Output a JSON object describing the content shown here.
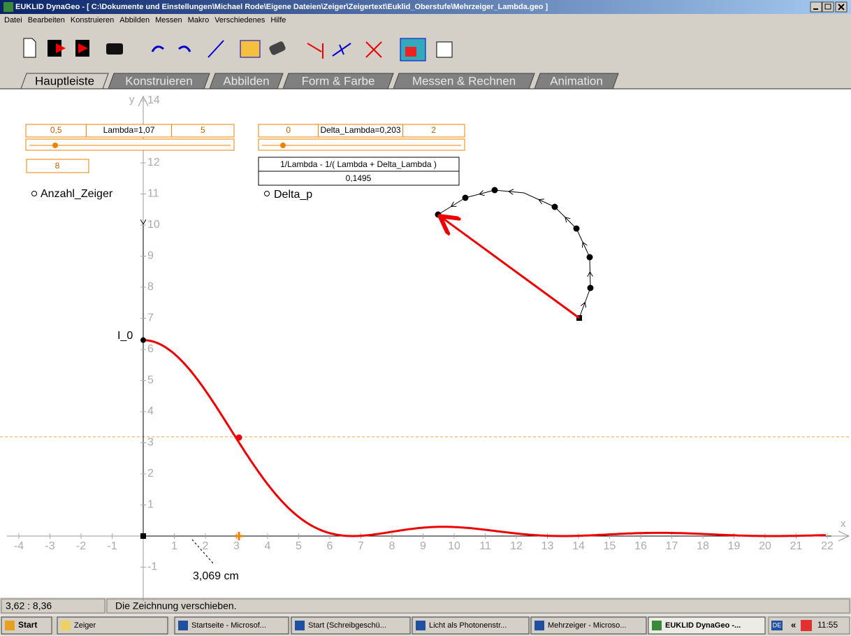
{
  "window": {
    "title": "EUKLID DynaGeo - [ C:\\Dokumente und Einstellungen\\Michael Rode\\Eigene Dateien\\Zeiger\\Zeigertext\\Euklid_Oberstufe\\Mehrzeiger_Lambda.geo ]"
  },
  "menu": [
    "Datei",
    "Bearbeiten",
    "Konstruieren",
    "Abbilden",
    "Messen",
    "Makro",
    "Verschiedenes",
    "Hilfe"
  ],
  "tabs": [
    "Hauptleiste",
    "Konstruieren",
    "Abbilden",
    "Form & Farbe",
    "Messen & Rechnen",
    "Animation"
  ],
  "canvas": {
    "x_axis_label": "x",
    "y_axis_label": "y",
    "x_ticks": [
      -4,
      -3,
      -2,
      -1,
      1,
      2,
      3,
      4,
      5,
      6,
      7,
      8,
      9,
      10,
      11,
      12,
      13,
      14,
      15,
      16,
      17,
      18,
      19,
      20,
      21,
      22
    ],
    "y_ticks": [
      -1,
      1,
      2,
      3,
      4,
      5,
      6,
      7,
      8,
      9,
      10,
      11,
      12,
      14
    ],
    "sliders": [
      {
        "min": "0,5",
        "label": "Lambda=1,07",
        "max": "5"
      },
      {
        "min": "0",
        "label": "Delta_Lambda=0,203",
        "max": "2"
      }
    ],
    "count_box": "8",
    "count_label": "Anzahl_Zeiger",
    "term": {
      "formula": "1/Lambda - 1/( Lambda + Delta_Lambda )",
      "value": "0,1495"
    },
    "term_label": "Delta_p",
    "intensity_label": "I_0",
    "distance_label": "3,069 cm"
  },
  "status": [
    "3,62 : 8,36",
    "Die Zeichnung verschieben."
  ],
  "taskbar": {
    "start": "Start",
    "items": [
      "Zeiger",
      "Startseite - Microsof...",
      "Start (Schreibgeschü...",
      "Licht als Photonenstr...",
      "Mehrzeiger - Microso...",
      "EUKLID DynaGeo -..."
    ],
    "language": "DE",
    "chevron": "«",
    "clock": "11:55"
  }
}
